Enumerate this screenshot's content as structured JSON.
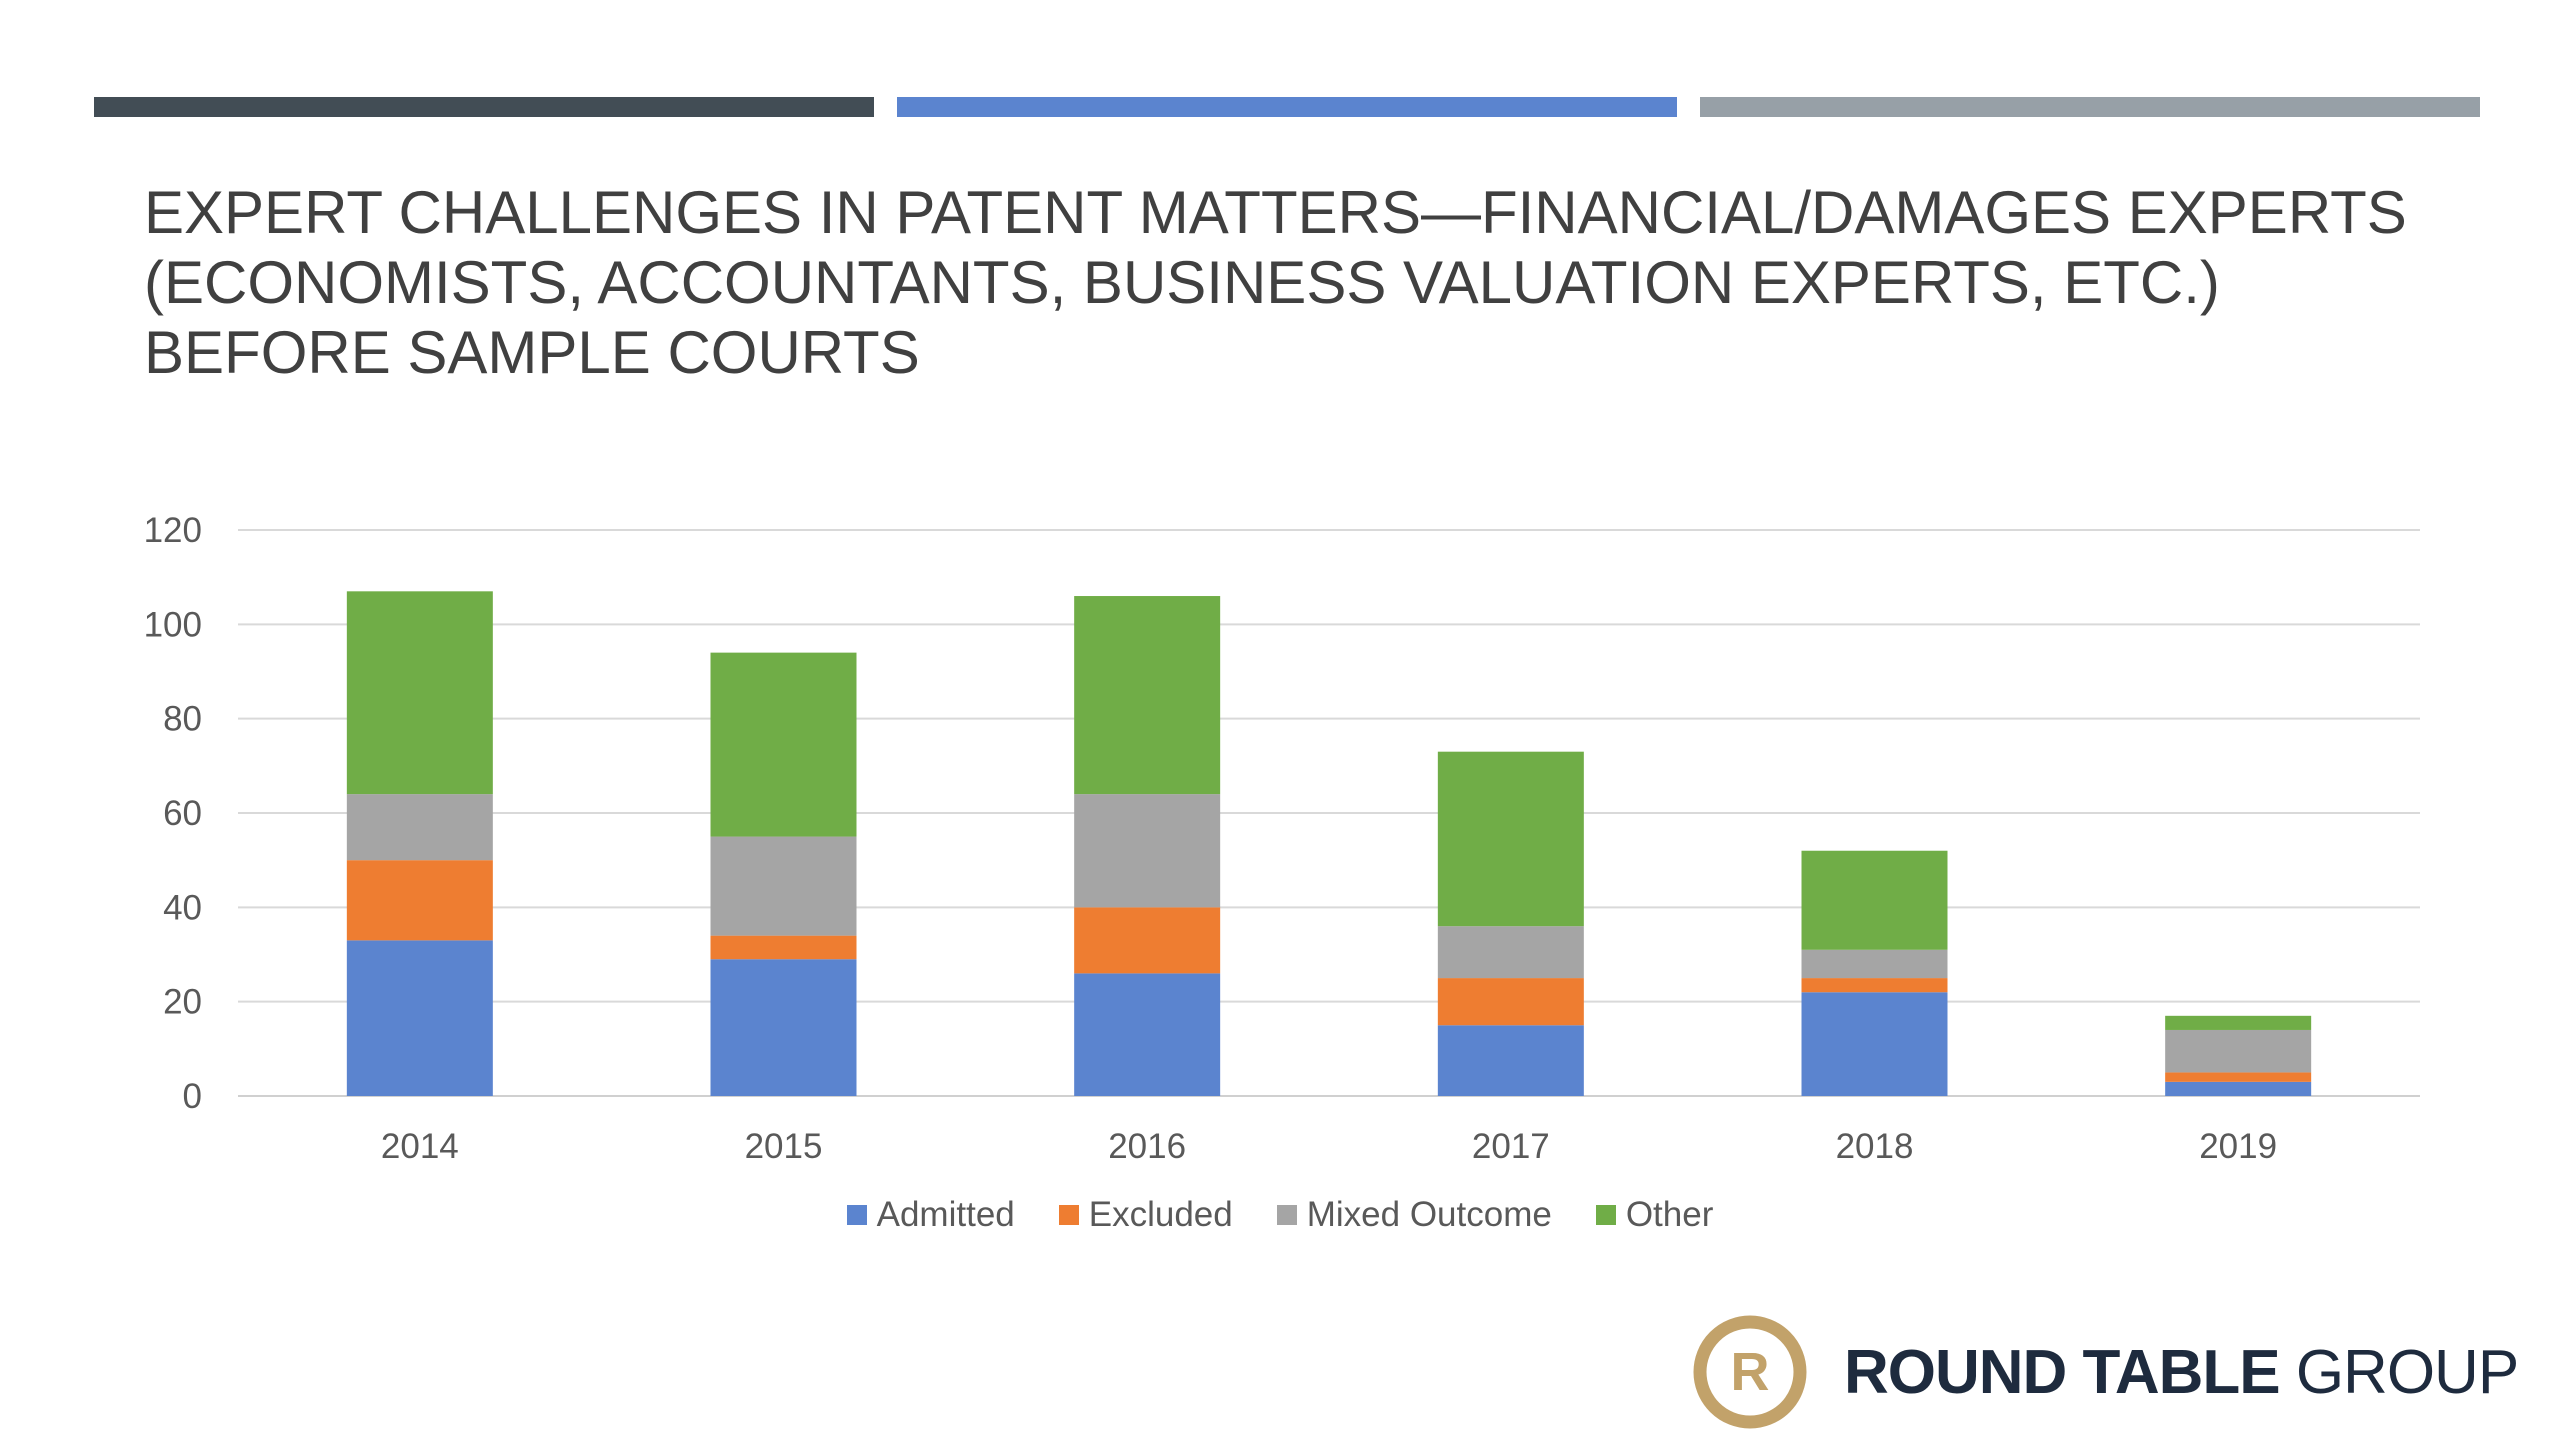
{
  "header": {
    "bar_colors": [
      "#424d55",
      "#5b84cf",
      "#97a0a7"
    ],
    "title_lines": [
      "EXPERT CHALLENGES IN PATENT MATTERS—FINANCIAL/DAMAGES EXPERTS",
      "(ECONOMISTS, ACCOUNTANTS, BUSINESS VALUATION EXPERTS, ETC.)",
      "BEFORE SAMPLE COURTS"
    ]
  },
  "chart_data": {
    "type": "bar",
    "stacked": true,
    "title": "EXPERT CHALLENGES IN PATENT MATTERS—FINANCIAL/DAMAGES EXPERTS (ECONOMISTS, ACCOUNTANTS, BUSINESS VALUATION EXPERTS, ETC.) BEFORE SAMPLE COURTS",
    "xlabel": "",
    "ylabel": "",
    "categories": [
      "2014",
      "2015",
      "2016",
      "2017",
      "2018",
      "2019"
    ],
    "series": [
      {
        "name": "Admitted",
        "color": "#5b84cf",
        "values": [
          33,
          29,
          26,
          15,
          22,
          3
        ]
      },
      {
        "name": "Excluded",
        "color": "#ee7d31",
        "values": [
          17,
          5,
          14,
          10,
          3,
          2
        ]
      },
      {
        "name": "Mixed Outcome",
        "color": "#a5a5a5",
        "values": [
          14,
          21,
          24,
          11,
          6,
          9
        ]
      },
      {
        "name": "Other",
        "color": "#70ad47",
        "values": [
          43,
          39,
          42,
          37,
          21,
          3
        ]
      }
    ],
    "ylim": [
      0,
      120
    ],
    "yticks": [
      0,
      20,
      40,
      60,
      80,
      100,
      120
    ],
    "grid": true,
    "legend": "bottom-center"
  },
  "logo": {
    "text_strong": "ROUND TABLE",
    "text_light": " GROUP",
    "mark_letter": "R",
    "ring_color": "#c2a26a",
    "text_color": "#1e2b3e"
  }
}
